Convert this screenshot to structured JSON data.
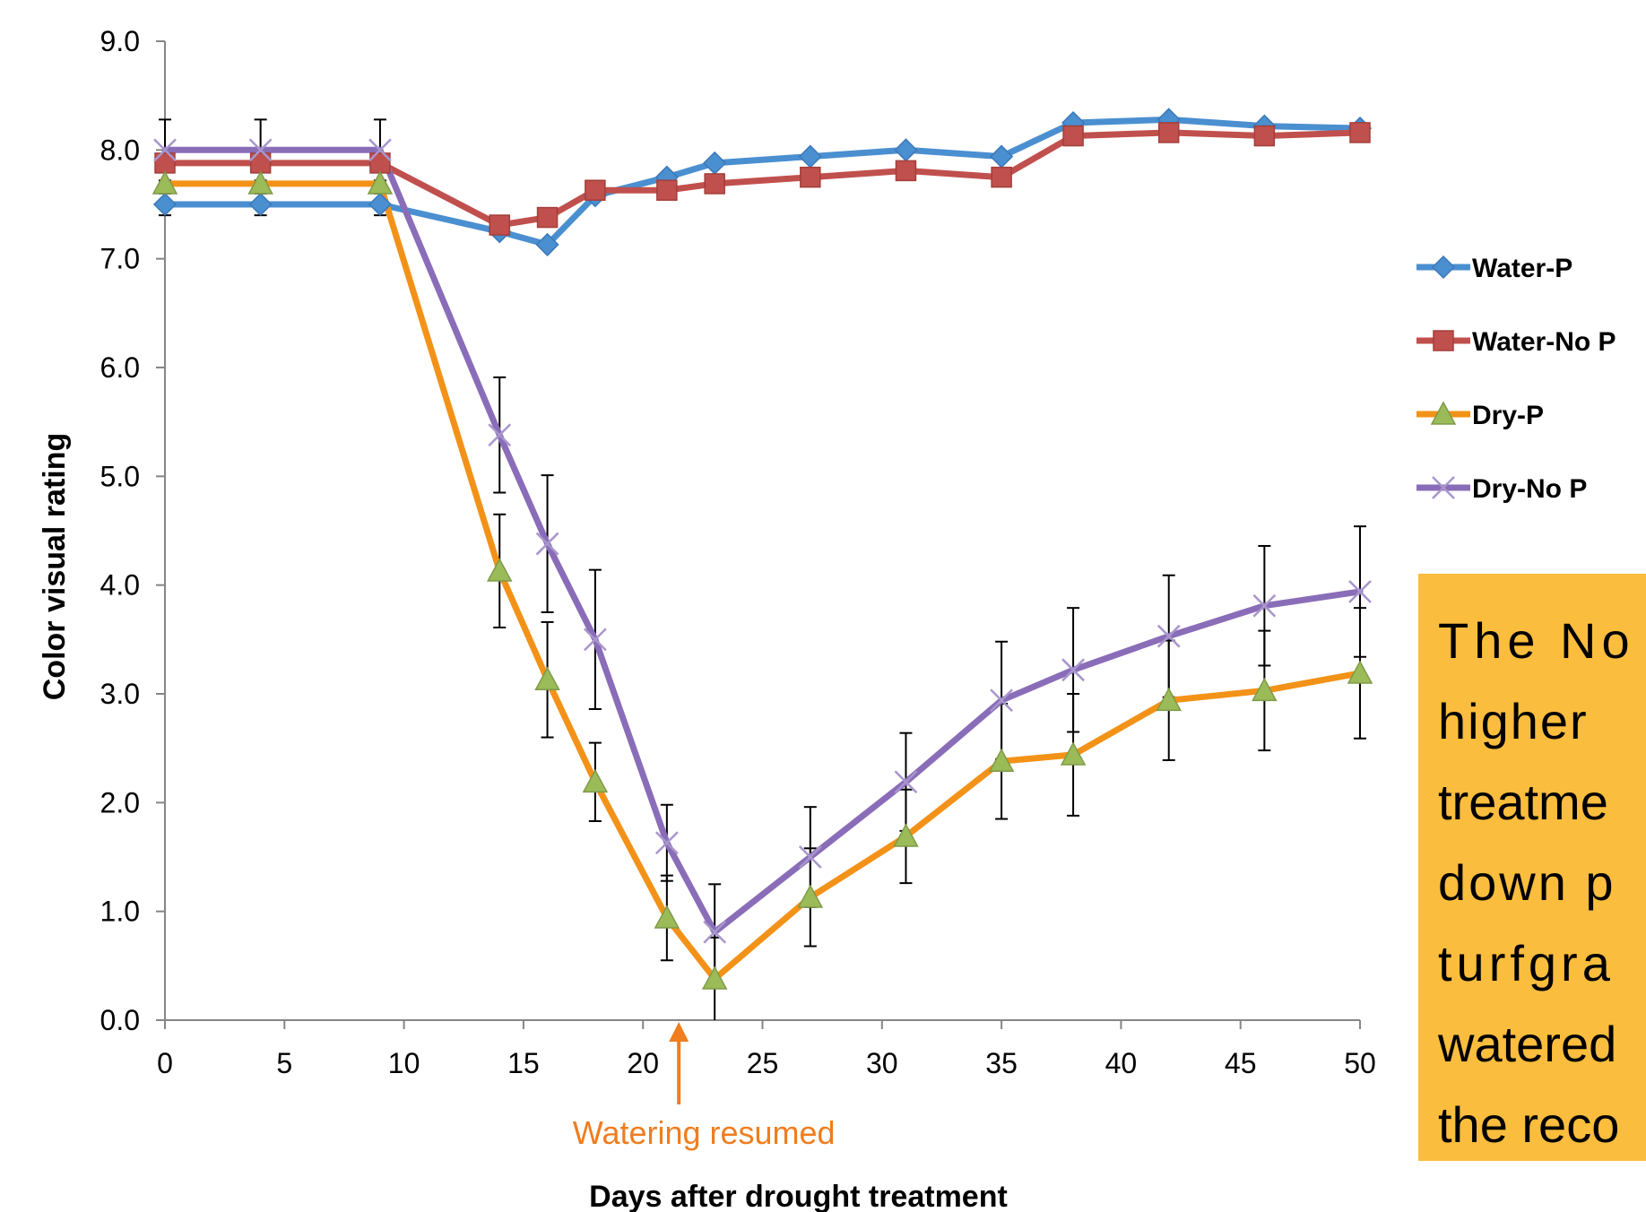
{
  "chart_data": {
    "type": "line",
    "xlabel": "Days after drought treatment",
    "ylabel": "Color visual rating",
    "xlim": [
      0,
      50
    ],
    "ylim": [
      0,
      9
    ],
    "xticks": [
      "0",
      "5",
      "10",
      "15",
      "20",
      "25",
      "30",
      "35",
      "40",
      "45",
      "50"
    ],
    "yticks": [
      "0.0",
      "1.0",
      "2.0",
      "3.0",
      "4.0",
      "5.0",
      "6.0",
      "7.0",
      "8.0",
      "9.0"
    ],
    "grid": false,
    "legend_position": "right",
    "x": [
      0,
      4,
      9,
      14,
      16,
      18,
      21,
      23,
      27,
      31,
      35,
      38,
      42,
      46,
      50
    ],
    "series": [
      {
        "name": "Water-P",
        "color": "#4a8fd0",
        "marker": "diamond",
        "values": [
          7.5,
          7.5,
          7.5,
          7.25,
          7.13,
          7.58,
          7.75,
          7.88,
          7.94,
          8.0,
          7.94,
          8.25,
          8.28,
          8.22,
          8.2
        ],
        "errors": [
          0.1,
          0.1,
          0.1,
          0,
          0,
          0,
          0,
          0,
          0,
          0,
          0,
          0,
          0,
          0,
          0
        ]
      },
      {
        "name": "Water-No P",
        "color": "#c0504d",
        "marker": "square",
        "values": [
          7.88,
          7.88,
          7.88,
          7.31,
          7.38,
          7.63,
          7.63,
          7.69,
          7.75,
          7.81,
          7.75,
          8.13,
          8.16,
          8.13,
          8.16
        ],
        "errors": [
          0,
          0,
          0,
          0,
          0,
          0,
          0,
          0,
          0,
          0,
          0,
          0,
          0,
          0,
          0
        ]
      },
      {
        "name": "Dry-P",
        "color": "#f39218",
        "marker": "triangle",
        "marker_fill": "#9bbb59",
        "values": [
          7.69,
          7.69,
          7.69,
          4.13,
          3.13,
          2.19,
          0.94,
          0.38,
          1.13,
          1.69,
          2.38,
          2.44,
          2.94,
          3.03,
          3.19
        ],
        "errors": [
          0,
          0,
          0,
          0.52,
          0.53,
          0.36,
          0.39,
          0.38,
          0.45,
          0.43,
          0.53,
          0.56,
          0.55,
          0.55,
          0.6
        ]
      },
      {
        "name": "Dry-No P",
        "color": "#8a6db8",
        "marker": "x",
        "values": [
          8.0,
          8.0,
          8.0,
          5.38,
          4.38,
          3.5,
          1.63,
          0.81,
          1.5,
          2.19,
          2.94,
          3.22,
          3.53,
          3.81,
          3.94
        ],
        "errors": [
          0.28,
          0.28,
          0.28,
          0.53,
          0.63,
          0.64,
          0.35,
          0.44,
          0.46,
          0.45,
          0.54,
          0.57,
          0.56,
          0.55,
          0.6
        ]
      }
    ],
    "annotations": [
      {
        "text": "Watering resumed",
        "x": 21.5,
        "color": "#f07d1e"
      }
    ]
  },
  "note": {
    "lines": [
      "The No",
      "higher",
      "treatme",
      "down p",
      "turfgra",
      "watered",
      "the reco"
    ]
  }
}
